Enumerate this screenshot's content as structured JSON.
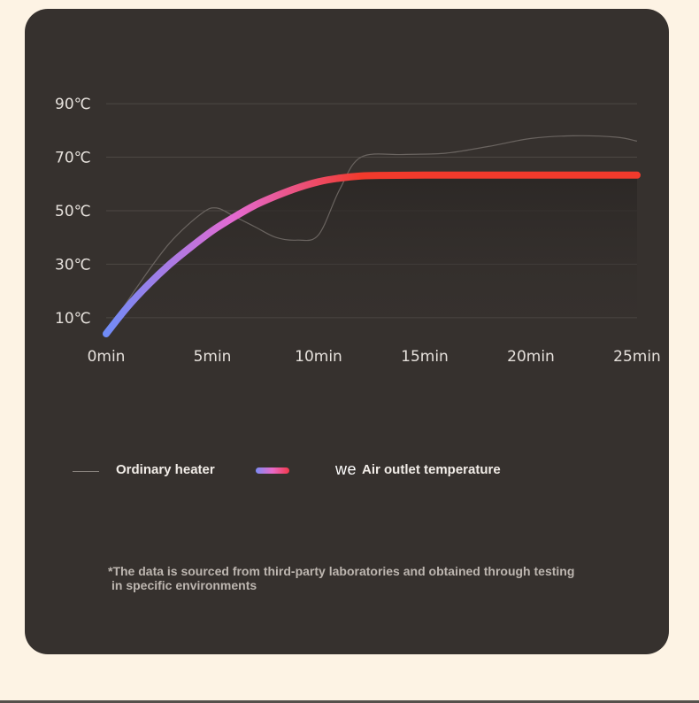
{
  "chart_data": {
    "type": "line",
    "x_ticks": [
      "0min",
      "5min",
      "10min",
      "15min",
      "20min",
      "25min"
    ],
    "y_ticks": [
      "90℃",
      "70℃",
      "50℃",
      "30℃",
      "10℃"
    ],
    "y_tick_values": [
      90,
      70,
      50,
      30,
      10
    ],
    "xlim": [
      0,
      25
    ],
    "ylim": [
      3,
      94
    ],
    "grid": true,
    "legend_position": "bottom",
    "series": [
      {
        "name": "Ordinary heater",
        "color": "#6a6460",
        "x": [
          0,
          1.5,
          3,
          4.5,
          5.2,
          6,
          7,
          8,
          9,
          10,
          11,
          12,
          14,
          16,
          18,
          20,
          22,
          24,
          25
        ],
        "y": [
          4,
          22,
          38,
          49,
          51,
          48,
          44,
          40,
          39,
          41,
          58,
          70,
          71,
          71.5,
          74,
          77,
          78,
          77.5,
          76
        ]
      },
      {
        "name": "Air outlet temperature",
        "color_start": "#6f8cf7",
        "color_mid": "#e36ad2",
        "color_end": "#f23a2c",
        "x": [
          0,
          1,
          2,
          3,
          4,
          5,
          6,
          7,
          8,
          9,
          10,
          11,
          12,
          13,
          15,
          18,
          21,
          25
        ],
        "y": [
          4,
          14,
          22.5,
          30,
          36.5,
          42.5,
          47.5,
          52,
          55.5,
          58.5,
          60.8,
          62.2,
          63,
          63.2,
          63.3,
          63.3,
          63.3,
          63.3
        ]
      }
    ]
  },
  "legend": {
    "plain_label": "Ordinary heater",
    "brand_mark": "we",
    "gradient_label": "Air outlet temperature"
  },
  "footnote": {
    "line1": "*The data is sourced from third-party laboratories and obtained through testing",
    "line2": "in specific environments"
  }
}
